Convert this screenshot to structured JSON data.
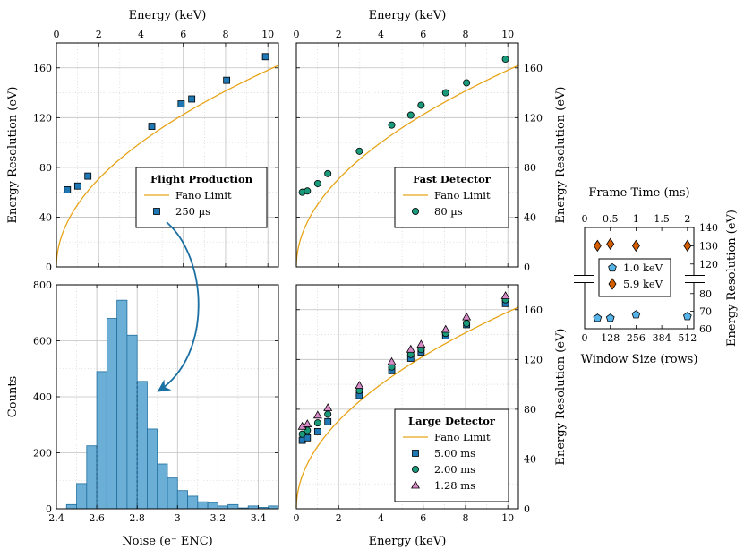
{
  "colors": {
    "blue": "#1f77b4",
    "teal": "#1a9a7a",
    "pink": "#d98bc9",
    "orange": "#d55e00",
    "lightblue": "#56b4e9",
    "fano": "#e8a317",
    "hist_fill": "#6baed6",
    "hist_edge": "#1f6f9f",
    "arrow": "#1a6fa3"
  },
  "chart_data": [
    {
      "id": "flight",
      "type": "scatter",
      "title": "",
      "xlabel_top": "Energy (keV)",
      "ylabel": "Energy Resolution (eV)",
      "xlim": [
        0,
        10.5
      ],
      "ylim": [
        0,
        180
      ],
      "xticks": [
        0,
        2,
        4,
        6,
        8,
        10
      ],
      "yticks": [
        0,
        40,
        80,
        120,
        160
      ],
      "legend": {
        "title": "Flight Production",
        "fano": "Fano Limit",
        "placement": "center-right"
      },
      "series": [
        {
          "name": "250 µs",
          "marker": "square",
          "color": "#1f77b4",
          "x": [
            0.52,
            1.01,
            1.49,
            4.51,
            5.9,
            6.4,
            8.05,
            9.89
          ],
          "y": [
            62,
            65,
            73,
            113,
            131,
            135,
            150,
            169
          ]
        }
      ]
    },
    {
      "id": "fast",
      "type": "scatter",
      "title": "",
      "xlabel_top": "Energy (keV)",
      "ylabel": "Energy Resolution (eV)",
      "xlim": [
        0,
        10.5
      ],
      "ylim": [
        0,
        180
      ],
      "xticks": [
        0,
        2,
        4,
        6,
        8,
        10
      ],
      "yticks": [
        0,
        40,
        80,
        120,
        160
      ],
      "legend": {
        "title": "Fast Detector",
        "fano": "Fano Limit",
        "placement": "center-right"
      },
      "series": [
        {
          "name": "80 µs",
          "marker": "circle",
          "color": "#1a9a7a",
          "x": [
            0.28,
            0.52,
            1.01,
            1.49,
            2.98,
            4.51,
            5.41,
            5.9,
            7.06,
            8.05,
            9.89
          ],
          "y": [
            60,
            61,
            67,
            75,
            93,
            114,
            122,
            130,
            140,
            148,
            167
          ]
        }
      ]
    },
    {
      "id": "histogram",
      "type": "bar",
      "title": "",
      "xlabel": "Noise (e⁻ ENC)",
      "ylabel": "Counts",
      "xlim": [
        2.4,
        3.5
      ],
      "ylim": [
        0,
        800
      ],
      "xticks": [
        2.4,
        2.6,
        2.8,
        3,
        3.2,
        3.4
      ],
      "xtick_labels": [
        "2.4",
        "2.6",
        "2.8",
        "3",
        "3.2",
        "3.4"
      ],
      "yticks": [
        0,
        200,
        400,
        600,
        800
      ],
      "bin_width": 0.05,
      "bin_starts": [
        2.45,
        2.5,
        2.55,
        2.6,
        2.65,
        2.7,
        2.75,
        2.8,
        2.85,
        2.9,
        2.95,
        3.0,
        3.05,
        3.1,
        3.15,
        3.2,
        3.25,
        3.3,
        3.35,
        3.4,
        3.45
      ],
      "values": [
        15,
        90,
        225,
        490,
        680,
        745,
        620,
        455,
        285,
        160,
        110,
        65,
        45,
        25,
        22,
        10,
        15,
        3,
        10,
        5,
        10
      ],
      "dashed_lines_x": [
        2.6,
        2.8
      ]
    },
    {
      "id": "large",
      "type": "scatter",
      "title": "",
      "xlabel": "Energy (keV)",
      "ylabel": "Energy Resolution (eV)",
      "xlim": [
        0,
        10.5
      ],
      "ylim": [
        0,
        180
      ],
      "xticks": [
        0,
        2,
        4,
        6,
        8,
        10
      ],
      "yticks": [
        0,
        40,
        80,
        120,
        160
      ],
      "legend": {
        "title": "Large Detector",
        "fano": "Fano Limit",
        "placement": "bottom-right"
      },
      "series": [
        {
          "name": "5.00 ms",
          "marker": "square",
          "color": "#1f77b4",
          "x": [
            0.28,
            0.52,
            1.01,
            1.49,
            2.98,
            4.51,
            5.41,
            5.9,
            7.06,
            8.05,
            9.89
          ],
          "y": [
            55,
            57,
            62,
            70,
            91,
            111,
            121,
            126,
            139,
            148,
            165
          ]
        },
        {
          "name": "2.00 ms",
          "marker": "circle",
          "color": "#1a9a7a",
          "x": [
            0.28,
            0.52,
            1.01,
            1.49,
            2.98,
            4.51,
            5.41,
            5.9,
            7.06,
            8.05,
            9.89
          ],
          "y": [
            60,
            63,
            69,
            76,
            95,
            114,
            124,
            128,
            141,
            149,
            168
          ]
        },
        {
          "name": "1.28 ms",
          "marker": "triangle",
          "color": "#d98bc9",
          "x": [
            0.28,
            0.52,
            1.01,
            1.49,
            2.98,
            4.51,
            5.41,
            5.9,
            7.06,
            8.05,
            9.89
          ],
          "y": [
            66,
            68,
            75,
            81,
            99,
            118,
            128,
            132,
            144,
            154,
            171
          ]
        }
      ]
    },
    {
      "id": "frame",
      "type": "scatter",
      "title": "",
      "xlabel_top": "Frame Time (ms)",
      "xlabel": "Window Size (rows)",
      "ylabel": "Energy Resolution (eV)",
      "xlim": [
        0,
        544
      ],
      "xticks": [
        0,
        128,
        256,
        384,
        512
      ],
      "xticks_top": [
        0,
        0.5,
        1,
        1.5,
        2
      ],
      "xticks_top_labels": [
        "0",
        "0.5",
        "1",
        "1.5",
        "2"
      ],
      "yticks_upper": [
        120,
        130,
        140
      ],
      "yticks_lower": [
        60,
        70,
        80
      ],
      "ylim_upper": [
        114,
        140
      ],
      "ylim_lower": [
        60,
        86
      ],
      "legend": {
        "placement": "center"
      },
      "series": [
        {
          "name": "1.0 keV",
          "marker": "pentagon",
          "color": "#56b4e9",
          "x": [
            64,
            128,
            256,
            512
          ],
          "y": [
            66,
            66,
            68,
            67
          ]
        },
        {
          "name": "5.9 keV",
          "marker": "diamond",
          "color": "#d55e00",
          "x": [
            64,
            128,
            256,
            512
          ],
          "y": [
            130,
            131,
            130,
            130
          ]
        }
      ]
    }
  ]
}
